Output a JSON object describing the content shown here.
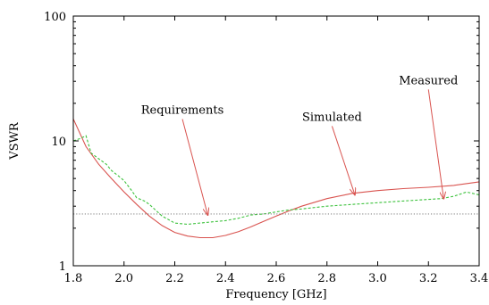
{
  "chart_data": {
    "type": "line",
    "title": "",
    "xlabel": "Frequency [GHz]",
    "ylabel": "VSWR",
    "xlim": [
      1.8,
      3.4
    ],
    "ylim": [
      1,
      100
    ],
    "y_scale": "log",
    "grid": false,
    "x_ticks": [
      "1.8",
      "2.0",
      "2.2",
      "2.4",
      "2.6",
      "2.8",
      "3.0",
      "3.2",
      "3.4"
    ],
    "y_ticks": [
      "1",
      "10",
      "100"
    ],
    "series": [
      {
        "name": "Simulated",
        "color": "#d9534f",
        "style": "solid",
        "x": [
          1.8,
          1.85,
          1.9,
          1.95,
          2.0,
          2.05,
          2.1,
          2.15,
          2.2,
          2.25,
          2.3,
          2.35,
          2.4,
          2.45,
          2.5,
          2.55,
          2.6,
          2.65,
          2.7,
          2.8,
          2.9,
          3.0,
          3.1,
          3.2,
          3.3,
          3.4
        ],
        "y": [
          15.0,
          9.0,
          6.5,
          5.0,
          3.9,
          3.1,
          2.5,
          2.1,
          1.85,
          1.73,
          1.68,
          1.68,
          1.75,
          1.87,
          2.05,
          2.27,
          2.5,
          2.75,
          3.0,
          3.45,
          3.8,
          4.0,
          4.15,
          4.25,
          4.4,
          4.7
        ]
      },
      {
        "name": "Measured",
        "color": "#3cc23c",
        "style": "dashed",
        "x": [
          1.8,
          1.83,
          1.85,
          1.87,
          1.9,
          1.93,
          1.95,
          1.98,
          2.0,
          2.03,
          2.05,
          2.08,
          2.1,
          2.15,
          2.2,
          2.25,
          2.3,
          2.35,
          2.4,
          2.45,
          2.5,
          2.55,
          2.6,
          2.65,
          2.7,
          2.8,
          2.9,
          3.0,
          3.1,
          3.2,
          3.25,
          3.3,
          3.35,
          3.4
        ],
        "y": [
          10.0,
          10.5,
          11.0,
          8.0,
          7.2,
          6.5,
          5.8,
          5.2,
          4.8,
          4.0,
          3.5,
          3.3,
          3.1,
          2.5,
          2.2,
          2.15,
          2.2,
          2.25,
          2.3,
          2.4,
          2.55,
          2.6,
          2.7,
          2.8,
          2.85,
          3.0,
          3.1,
          3.2,
          3.3,
          3.4,
          3.45,
          3.6,
          3.9,
          3.7
        ]
      },
      {
        "name": "Requirements",
        "color": "#888888",
        "style": "dotted",
        "x": [
          1.8,
          3.4
        ],
        "y": [
          2.6,
          2.6
        ]
      }
    ],
    "annotations": [
      {
        "text": "Requirements",
        "x": 2.23,
        "y": 16.5,
        "arrow_to": [
          2.33,
          2.55
        ]
      },
      {
        "text": "Simulated",
        "x": 2.82,
        "y": 14.5,
        "arrow_to": [
          2.91,
          3.7
        ]
      },
      {
        "text": "Measured",
        "x": 3.2,
        "y": 28.5,
        "arrow_to": [
          3.26,
          3.45
        ]
      }
    ]
  }
}
